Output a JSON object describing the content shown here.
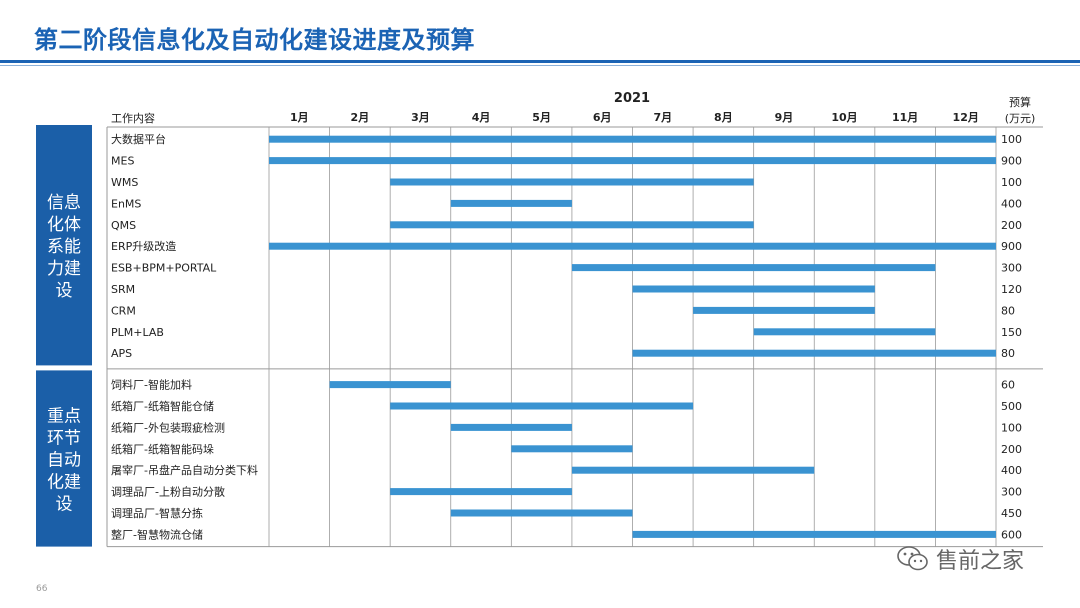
{
  "page": {
    "title": "第二阶段信息化及自动化建设进度及预算",
    "page_number": "66",
    "watermark_text": "售前之家"
  },
  "colors": {
    "accent": "#1b63b4",
    "bar": "#3a93d1",
    "group_box": "#1b5fa8",
    "grid": "#9a9a9a"
  },
  "chart_data": {
    "type": "gantt",
    "year_label": "2021",
    "task_header": "工作内容",
    "budget_header_line1": "预算",
    "budget_header_line2": "(万元)",
    "months": [
      "1月",
      "2月",
      "3月",
      "4月",
      "5月",
      "6月",
      "7月",
      "8月",
      "9月",
      "10月",
      "11月",
      "12月"
    ],
    "groups": [
      {
        "label_lines": [
          "信息",
          "化体",
          "系能",
          "力建",
          "设"
        ],
        "tasks": [
          {
            "name": "大数据平台",
            "start": 1,
            "end": 12,
            "budget": "100"
          },
          {
            "name": "MES",
            "start": 1,
            "end": 12,
            "budget": "900"
          },
          {
            "name": "WMS",
            "start": 3,
            "end": 8,
            "budget": "100"
          },
          {
            "name": "EnMS",
            "start": 4,
            "end": 5,
            "budget": "400"
          },
          {
            "name": "QMS",
            "start": 3,
            "end": 8,
            "budget": "200"
          },
          {
            "name": "ERP升级改造",
            "start": 1,
            "end": 12,
            "budget": "900"
          },
          {
            "name": "ESB+BPM+PORTAL",
            "start": 6,
            "end": 11,
            "budget": "300"
          },
          {
            "name": "SRM",
            "start": 7,
            "end": 10,
            "budget": "120"
          },
          {
            "name": "CRM",
            "start": 8,
            "end": 10,
            "budget": "80"
          },
          {
            "name": "PLM+LAB",
            "start": 9,
            "end": 11,
            "budget": "150"
          },
          {
            "name": "APS",
            "start": 7,
            "end": 12,
            "budget": "80"
          }
        ]
      },
      {
        "label_lines": [
          "重点",
          "环节",
          "自动",
          "化建",
          "设"
        ],
        "tasks": [
          {
            "name": "饲料厂-智能加料",
            "start": 2,
            "end": 3,
            "budget": "60"
          },
          {
            "name": "纸箱厂-纸箱智能仓储",
            "start": 3,
            "end": 7,
            "budget": "500"
          },
          {
            "name": "纸箱厂-外包装瑕疵检测",
            "start": 4,
            "end": 5,
            "budget": "100"
          },
          {
            "name": "纸箱厂-纸箱智能码垛",
            "start": 5,
            "end": 6,
            "budget": "200"
          },
          {
            "name": "屠宰厂-吊盘产品自动分类下料",
            "start": 6,
            "end": 9,
            "budget": "400"
          },
          {
            "name": "调理品厂-上粉自动分散",
            "start": 3,
            "end": 5,
            "budget": "300"
          },
          {
            "name": "调理品厂-智慧分拣",
            "start": 4,
            "end": 6,
            "budget": "450"
          },
          {
            "name": "整厂-智慧物流仓储",
            "start": 7,
            "end": 12,
            "budget": "600"
          }
        ]
      }
    ]
  }
}
